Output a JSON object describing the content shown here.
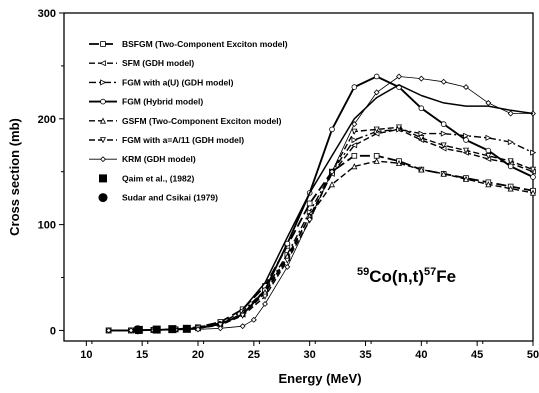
{
  "chart_data": {
    "type": "line",
    "xlabel": "Energy (MeV)",
    "ylabel": "Cross section (mb)",
    "xlim": [
      8,
      50
    ],
    "ylim": [
      -10,
      300
    ],
    "xticks": [
      10,
      15,
      20,
      25,
      30,
      35,
      40,
      45,
      50
    ],
    "yticks": [
      0,
      100,
      200,
      300
    ],
    "grid": false,
    "legend_position": "top-left",
    "annotation": {
      "pre1": "59",
      "mid1": "Co(n,t)",
      "pre2": "57",
      "mid2": "Fe"
    },
    "series": [
      {
        "name": "BSFGM (Two-Component Exciton model)",
        "style": "long-dash",
        "marker": "square",
        "x": [
          12,
          14,
          16,
          18,
          20,
          22,
          24,
          26,
          28,
          30,
          32,
          34,
          36,
          38,
          40,
          42,
          44,
          46,
          48,
          50
        ],
        "y": [
          0,
          0,
          0.5,
          1,
          3,
          8,
          20,
          42,
          80,
          120,
          150,
          165,
          165,
          160,
          152,
          148,
          144,
          140,
          136,
          132
        ]
      },
      {
        "name": "SFM (GDH model)",
        "style": "dash",
        "marker": "triangle-left",
        "x": [
          12,
          14,
          16,
          18,
          20,
          22,
          24,
          26,
          28,
          30,
          32,
          34,
          36,
          38,
          40,
          42,
          44,
          46,
          48,
          50
        ],
        "y": [
          0,
          0,
          0.5,
          1,
          2,
          6,
          15,
          35,
          68,
          108,
          148,
          175,
          186,
          190,
          180,
          172,
          168,
          162,
          158,
          150
        ]
      },
      {
        "name": "FGM with a(U) (GDH model)",
        "style": "dash-dot",
        "marker": "triangle-right",
        "x": [
          12,
          14,
          16,
          18,
          20,
          22,
          24,
          26,
          28,
          30,
          32,
          34,
          36,
          38,
          40,
          42,
          44,
          46,
          48,
          50
        ],
        "y": [
          0,
          0,
          0.5,
          1,
          3,
          7,
          18,
          38,
          72,
          112,
          150,
          180,
          188,
          190,
          186,
          186,
          184,
          182,
          178,
          168
        ]
      },
      {
        "name": "FGM (Hybrid model)",
        "style": "solid-thick",
        "marker": "circle",
        "x": [
          12,
          14,
          16,
          18,
          20,
          22,
          24,
          26,
          28,
          30,
          32,
          34,
          36,
          38,
          40,
          42,
          44,
          46,
          48,
          50
        ],
        "y": [
          0,
          0,
          0.5,
          1,
          2,
          6,
          15,
          38,
          82,
          130,
          190,
          230,
          240,
          230,
          210,
          195,
          180,
          170,
          155,
          145
        ]
      },
      {
        "name": "GSFM (Two-Component Exciton model)",
        "style": "dash",
        "marker": "triangle-up",
        "x": [
          12,
          14,
          16,
          18,
          20,
          22,
          24,
          26,
          28,
          30,
          32,
          34,
          36,
          38,
          40,
          42,
          44,
          46,
          48,
          50
        ],
        "y": [
          0,
          0,
          0.5,
          1,
          2,
          6,
          16,
          36,
          70,
          108,
          138,
          155,
          160,
          158,
          152,
          148,
          143,
          138,
          134,
          130
        ]
      },
      {
        "name": "FGM with a=A/11 (GDH model)",
        "style": "dash",
        "marker": "triangle-down",
        "x": [
          12,
          14,
          16,
          18,
          20,
          22,
          24,
          26,
          28,
          30,
          32,
          34,
          36,
          38,
          40,
          42,
          44,
          46,
          48,
          50
        ],
        "y": [
          0,
          0,
          0.5,
          1,
          2,
          5,
          14,
          32,
          66,
          104,
          150,
          188,
          190,
          192,
          182,
          175,
          170,
          165,
          160,
          152
        ]
      },
      {
        "name": "KRM (GDH model)",
        "style": "thin",
        "marker": "diamond",
        "x": [
          12,
          14,
          16,
          18,
          20,
          22,
          24,
          25,
          26,
          28,
          30,
          32,
          34,
          36,
          38,
          40,
          42,
          44,
          46,
          48,
          50
        ],
        "y": [
          0,
          0,
          0,
          0.5,
          1,
          2,
          4,
          10,
          25,
          60,
          105,
          150,
          195,
          225,
          240,
          238,
          235,
          230,
          215,
          205,
          205
        ]
      },
      {
        "name": "FGM (Hybrid model)",
        "style": "solid",
        "marker": "none",
        "x": [
          24,
          26,
          28,
          30,
          32,
          34,
          36,
          38,
          40,
          42,
          44,
          46,
          48,
          50
        ],
        "y": [
          20,
          45,
          88,
          130,
          165,
          200,
          220,
          232,
          222,
          215,
          212,
          212,
          208,
          205
        ]
      },
      {
        "name": "Qaim et al., (1982)",
        "style": "none",
        "marker": "filled-square",
        "x": [
          14.7,
          16.3,
          17.7,
          19.0
        ],
        "y": [
          0.5,
          0.8,
          1.2,
          1.5
        ]
      },
      {
        "name": "Sudar and Csikai (1979)",
        "style": "none",
        "marker": "filled-circle",
        "x": [
          14.6
        ],
        "y": [
          0.6
        ]
      }
    ]
  }
}
